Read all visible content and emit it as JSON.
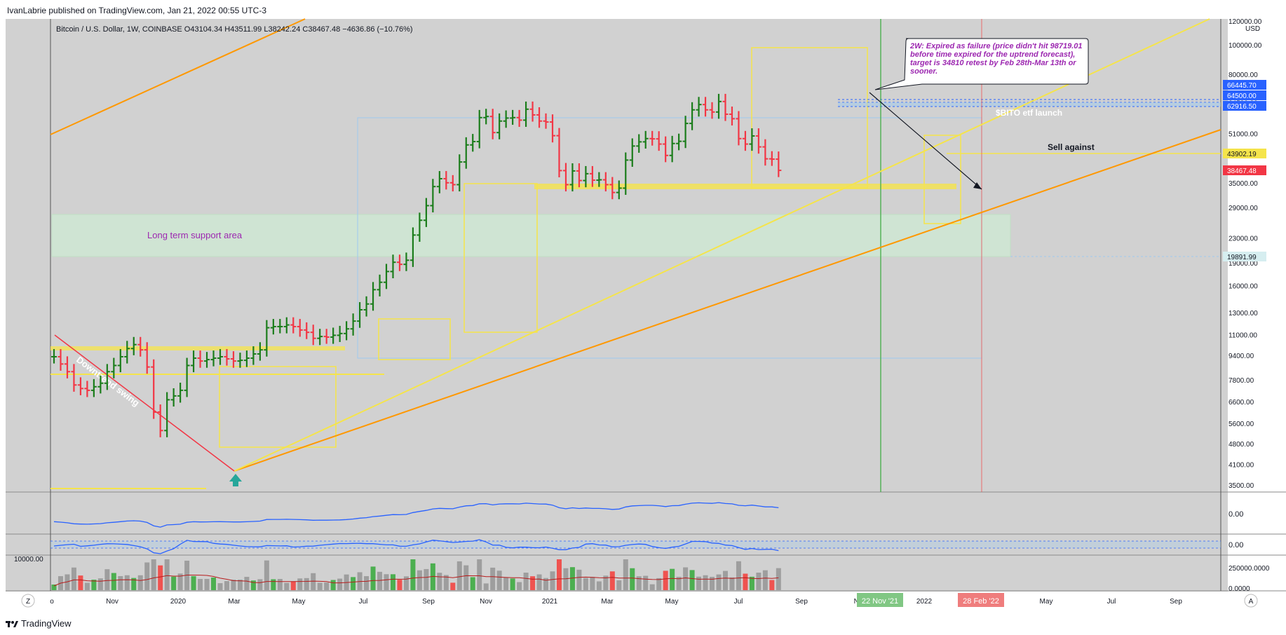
{
  "header": {
    "publisher": "IvanLabrie published on TradingView.com, Jan 21, 2022 00:55 UTC-3"
  },
  "footer": {
    "brand": "TradingView"
  },
  "chart_data": {
    "type": "ohlc-bars",
    "symbol_line": "Bitcoin / U.S. Dollar, 1W, COINBASE  O43104.34  H43511.99  L38242.24  C38467.48  −4636.86 (−10.76%)",
    "currency": "USD",
    "yaxis": {
      "scale": "log",
      "ticks": [
        "120000.00",
        "100000.00",
        "80000.00",
        "64500.00",
        "51000.00",
        "43000.00",
        "35000.00",
        "29000.00",
        "23000.00",
        "19000.00",
        "16000.00",
        "13000.00",
        "11000.00",
        "9400.00",
        "7800.00",
        "6600.00",
        "5600.00",
        "4800.00",
        "4100.00",
        "3500.00"
      ],
      "range": [
        3300,
        125000
      ]
    },
    "xaxis": {
      "ticks": [
        "o",
        "Nov",
        "2020",
        "Mar",
        "May",
        "Jul",
        "Sep",
        "Nov",
        "2021",
        "Mar",
        "May",
        "Jul",
        "Sep",
        "No",
        "2022",
        "May",
        "Jul",
        "Sep"
      ],
      "highlight_labels": [
        {
          "label": "22 Nov '21",
          "color": "#81c784"
        },
        {
          "label": "28 Feb '22",
          "color": "#ef7d7d"
        }
      ]
    },
    "price_labels": [
      {
        "value": "66445.70",
        "color": "#2962ff"
      },
      {
        "value": "64500.00",
        "color": "#2962ff"
      },
      {
        "value": "62916.50",
        "color": "#2962ff"
      },
      {
        "value": "43902.19",
        "color": "#f5e44b"
      },
      {
        "value": "38467.48",
        "color": "#f23645"
      },
      {
        "value": "19891.99",
        "color": "#d6eef0"
      }
    ],
    "annotations": {
      "callout": "2W: Expired as failure (price didn't hit 98719.01 before time expired for the uptrend forecast), target is 34810 retest by Feb 28th-Mar 13th or sooner.",
      "etf": "$BITO etf launch",
      "sell": "Sell against",
      "support": "Long term support area",
      "trend": "Downtrend swing",
      "left_button": "Z",
      "right_button": "A"
    },
    "indicator1": {
      "ticks": [
        "0.00"
      ]
    },
    "indicator2": {
      "ticks": [
        "0.00"
      ]
    },
    "volume": {
      "left_label": "10000.00",
      "ticks": [
        "250000.0000",
        "0.0000"
      ]
    },
    "weekly_closes": [
      9300,
      8800,
      8300,
      7500,
      7300,
      7200,
      7400,
      7600,
      8300,
      8700,
      9300,
      9900,
      10200,
      9800,
      8600,
      6100,
      5300,
      6700,
      6900,
      7200,
      8700,
      9200,
      9000,
      9100,
      9200,
      9300,
      9150,
      9000,
      9050,
      9200,
      9500,
      9800,
      11600,
      11700,
      11700,
      11850,
      11700,
      11400,
      11200,
      10700,
      10850,
      10800,
      10950,
      11100,
      11500,
      12200,
      13300,
      13900,
      15500,
      16400,
      17800,
      19100,
      18800,
      19400,
      23500,
      26300,
      29400,
      34000,
      36100,
      35000,
      34500,
      41000,
      46700,
      47900,
      57500,
      58000,
      51300,
      56000,
      57300,
      57500,
      56400,
      61300,
      58700,
      56000,
      55600,
      50100,
      38400,
      34500,
      38300,
      35600,
      37500,
      35700,
      35800,
      34500,
      32500,
      33600,
      41600,
      46300,
      47800,
      49000,
      48900,
      47000,
      43100,
      47200,
      48000,
      55000,
      61000,
      63500,
      61000,
      60000,
      65000,
      59000,
      57000,
      49000,
      47000,
      50000,
      46000,
      42000,
      41900,
      38467
    ]
  }
}
